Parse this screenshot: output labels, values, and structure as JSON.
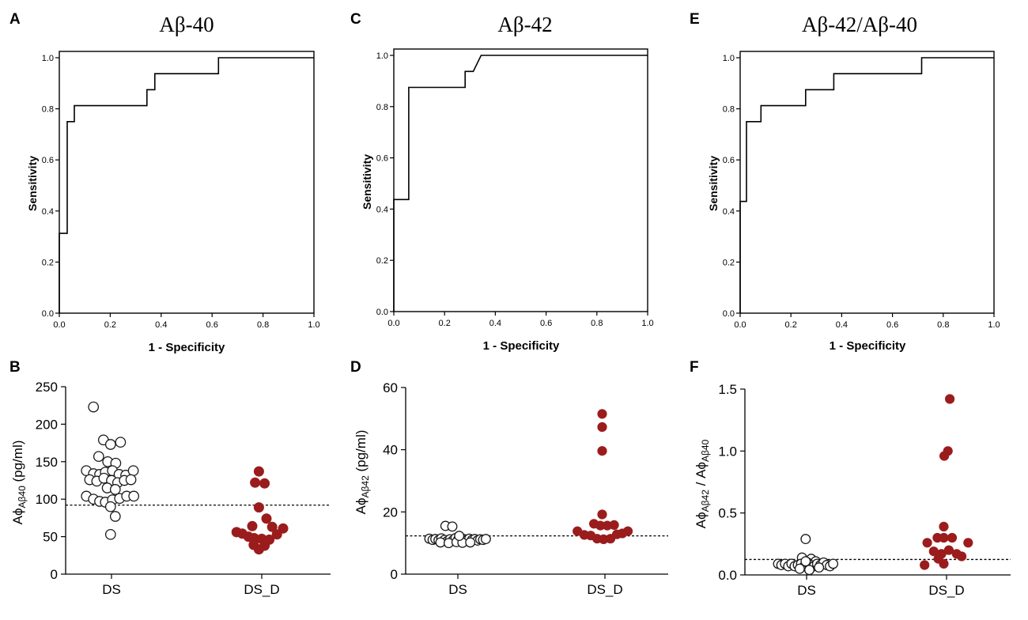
{
  "panel_labels": [
    "A",
    "B",
    "C",
    "D",
    "E",
    "F"
  ],
  "colors": {
    "axis": "#000000",
    "ds_fill": "#ffffff",
    "ds_stroke": "#1a1a1a",
    "dsd_fill": "#9b1c1c",
    "threshold": "#000000"
  },
  "chart_data": [
    {
      "panel": "A",
      "type": "line",
      "subtype": "roc-step",
      "title": "Aβ-40",
      "xlabel": "1 - Specificity",
      "ylabel": "Sensitivity",
      "xlim": [
        0,
        1
      ],
      "ylim": [
        0,
        1
      ],
      "xticks": [
        "0.0",
        "0.2",
        "0.4",
        "0.6",
        "0.8",
        "1.0"
      ],
      "yticks": [
        "0.0",
        "0.2",
        "0.4",
        "0.6",
        "0.8",
        "1.0"
      ],
      "points": [
        [
          0,
          0
        ],
        [
          0,
          0.3125
        ],
        [
          0.031,
          0.3125
        ],
        [
          0.031,
          0.75
        ],
        [
          0.059,
          0.75
        ],
        [
          0.059,
          0.8125
        ],
        [
          0.344,
          0.8125
        ],
        [
          0.344,
          0.875
        ],
        [
          0.375,
          0.875
        ],
        [
          0.375,
          0.9375
        ],
        [
          0.625,
          0.9375
        ],
        [
          0.625,
          1.0
        ],
        [
          1.0,
          1.0
        ]
      ]
    },
    {
      "panel": "C",
      "type": "line",
      "subtype": "roc-step",
      "title": "Aβ-42",
      "xlabel": "1 - Specificity",
      "ylabel": "Sensitivity",
      "xlim": [
        0,
        1
      ],
      "ylim": [
        0,
        1
      ],
      "xticks": [
        "0.0",
        "0.2",
        "0.4",
        "0.6",
        "0.8",
        "1.0"
      ],
      "yticks": [
        "0.0",
        "0.2",
        "0.4",
        "0.6",
        "0.8",
        "1.0"
      ],
      "points": [
        [
          0,
          0
        ],
        [
          0,
          0.4375
        ],
        [
          0.059,
          0.4375
        ],
        [
          0.059,
          0.875
        ],
        [
          0.281,
          0.875
        ],
        [
          0.281,
          0.9375
        ],
        [
          0.313,
          0.9375
        ],
        [
          0.344,
          1.0
        ],
        [
          1.0,
          1.0
        ]
      ]
    },
    {
      "panel": "E",
      "type": "line",
      "subtype": "roc-step",
      "title": "Aβ-42/Aβ-40",
      "xlabel": "1 - Specificity",
      "ylabel": "Sensitivity",
      "xlim": [
        0,
        1
      ],
      "ylim": [
        0,
        1
      ],
      "xticks": [
        "0.0",
        "0.2",
        "0.4",
        "0.6",
        "0.8",
        "1.0"
      ],
      "yticks": [
        "0.0",
        "0.2",
        "0.4",
        "0.6",
        "0.8",
        "1.0"
      ],
      "points": [
        [
          0,
          0
        ],
        [
          0,
          0.4375
        ],
        [
          0.025,
          0.4375
        ],
        [
          0.025,
          0.75
        ],
        [
          0.082,
          0.75
        ],
        [
          0.082,
          0.8125
        ],
        [
          0.258,
          0.8125
        ],
        [
          0.258,
          0.875
        ],
        [
          0.369,
          0.875
        ],
        [
          0.369,
          0.9375
        ],
        [
          0.715,
          0.9375
        ],
        [
          0.715,
          1.0
        ],
        [
          1.0,
          1.0
        ]
      ]
    },
    {
      "panel": "B",
      "type": "scatter",
      "subtype": "dot-plot",
      "ylabel_main": "Aϕ",
      "ylabel_sub": "Aβ40",
      "ylabel_unit": " (pg/ml)",
      "ylim": [
        0,
        250
      ],
      "yticks": [
        0,
        50,
        100,
        150,
        200,
        250
      ],
      "categories": [
        "DS",
        "DS_D"
      ],
      "threshold": 92,
      "series": [
        {
          "name": "DS",
          "style": "open",
          "points": [
            [
              -0.38,
              223
            ],
            [
              -0.17,
              179
            ],
            [
              -0.02,
              173
            ],
            [
              0.19,
              176
            ],
            [
              -0.27,
              157
            ],
            [
              -0.08,
              150
            ],
            [
              0.09,
              148
            ],
            [
              -0.53,
              138
            ],
            [
              -0.38,
              134
            ],
            [
              -0.25,
              133
            ],
            [
              -0.13,
              136
            ],
            [
              0.02,
              138
            ],
            [
              0.16,
              133
            ],
            [
              0.3,
              132
            ],
            [
              0.46,
              138
            ],
            [
              -0.46,
              126
            ],
            [
              -0.31,
              124
            ],
            [
              -0.16,
              128
            ],
            [
              0.0,
              125
            ],
            [
              0.13,
              122
            ],
            [
              0.27,
              125
            ],
            [
              0.41,
              126
            ],
            [
              -0.09,
              115
            ],
            [
              0.08,
              113
            ],
            [
              -0.53,
              104
            ],
            [
              -0.38,
              100
            ],
            [
              -0.25,
              97
            ],
            [
              -0.13,
              96
            ],
            [
              0.02,
              99
            ],
            [
              0.17,
              101
            ],
            [
              0.32,
              104
            ],
            [
              0.47,
              104
            ],
            [
              -0.02,
              90
            ],
            [
              0.08,
              77
            ],
            [
              -0.02,
              53
            ]
          ]
        },
        {
          "name": "DS_D",
          "style": "filled",
          "points": [
            [
              -0.06,
              137
            ],
            [
              -0.14,
              122
            ],
            [
              0.06,
              121
            ],
            [
              -0.06,
              89
            ],
            [
              0.1,
              74
            ],
            [
              -0.2,
              64
            ],
            [
              0.22,
              63
            ],
            [
              0.45,
              61
            ],
            [
              -0.53,
              56
            ],
            [
              -0.41,
              54
            ],
            [
              -0.28,
              50
            ],
            [
              -0.16,
              48
            ],
            [
              0.0,
              47
            ],
            [
              0.16,
              46
            ],
            [
              0.32,
              53
            ],
            [
              -0.17,
              39
            ],
            [
              0.06,
              38
            ],
            [
              -0.06,
              33
            ]
          ]
        }
      ]
    },
    {
      "panel": "D",
      "type": "scatter",
      "subtype": "dot-plot",
      "ylabel_main": "Aϕ",
      "ylabel_sub": "Aβ42",
      "ylabel_unit": " (pg/ml)",
      "ylim": [
        0,
        60
      ],
      "yticks": [
        0,
        20,
        40,
        60
      ],
      "categories": [
        "DS",
        "DS_D"
      ],
      "threshold": 12.3,
      "series": [
        {
          "name": "DS",
          "style": "open",
          "points": [
            [
              -0.27,
              15.5
            ],
            [
              -0.12,
              15.3
            ],
            [
              -0.62,
              11.4
            ],
            [
              -0.55,
              11.0
            ],
            [
              -0.49,
              11.3
            ],
            [
              -0.42,
              10.9
            ],
            [
              -0.36,
              11.5
            ],
            [
              -0.29,
              11.0
            ],
            [
              -0.23,
              10.6
            ],
            [
              -0.17,
              11.2
            ],
            [
              -0.11,
              10.8
            ],
            [
              -0.05,
              11.6
            ],
            [
              0.01,
              11.2
            ],
            [
              0.07,
              10.7
            ],
            [
              0.13,
              11.3
            ],
            [
              0.19,
              10.9
            ],
            [
              0.25,
              11.4
            ],
            [
              0.31,
              11.0
            ],
            [
              0.37,
              11.3
            ],
            [
              0.43,
              10.8
            ],
            [
              0.49,
              11.2
            ],
            [
              0.55,
              11.0
            ],
            [
              0.61,
              11.3
            ],
            [
              -0.38,
              10.2
            ],
            [
              -0.2,
              10.0
            ],
            [
              -0.03,
              10.3
            ],
            [
              0.1,
              10.1
            ],
            [
              0.27,
              10.2
            ],
            [
              0.03,
              12.3
            ]
          ]
        },
        {
          "name": "DS_D",
          "style": "filled",
          "points": [
            [
              -0.06,
              51.5
            ],
            [
              -0.06,
              47.3
            ],
            [
              -0.06,
              39.6
            ],
            [
              -0.06,
              19.2
            ],
            [
              -0.24,
              16.2
            ],
            [
              -0.1,
              15.6
            ],
            [
              0.05,
              15.6
            ],
            [
              0.2,
              15.8
            ],
            [
              -0.6,
              13.8
            ],
            [
              0.5,
              13.8
            ],
            [
              -0.45,
              12.6
            ],
            [
              -0.31,
              12.4
            ],
            [
              -0.17,
              11.4
            ],
            [
              -0.03,
              11.2
            ],
            [
              0.12,
              11.4
            ],
            [
              0.26,
              12.8
            ],
            [
              0.38,
              13.1
            ]
          ]
        }
      ]
    },
    {
      "panel": "F",
      "type": "scatter",
      "subtype": "dot-plot",
      "ylabel_main": "Aϕ",
      "ylabel_sub": "Aβ42",
      "ylabel_sep": " / ",
      "ylabel_main2": "Aϕ",
      "ylabel_sub2": "Aβ40",
      "ylim": [
        0,
        1.5
      ],
      "yticks": [
        "0.0",
        "0.5",
        "1.0",
        "1.5"
      ],
      "categories": [
        "DS",
        "DS_D"
      ],
      "threshold": 0.125,
      "series": [
        {
          "name": "DS",
          "style": "open",
          "points": [
            [
              -0.02,
              0.29
            ],
            [
              -0.1,
              0.14
            ],
            [
              0.1,
              0.13
            ],
            [
              0.2,
              0.11
            ],
            [
              -0.62,
              0.09
            ],
            [
              -0.55,
              0.08
            ],
            [
              -0.47,
              0.09
            ],
            [
              -0.4,
              0.07
            ],
            [
              -0.33,
              0.09
            ],
            [
              -0.26,
              0.07
            ],
            [
              -0.19,
              0.08
            ],
            [
              -0.12,
              0.09
            ],
            [
              -0.05,
              0.07
            ],
            [
              0.02,
              0.1
            ],
            [
              0.09,
              0.08
            ],
            [
              0.16,
              0.07
            ],
            [
              0.23,
              0.09
            ],
            [
              0.3,
              0.08
            ],
            [
              0.37,
              0.1
            ],
            [
              0.44,
              0.08
            ],
            [
              0.51,
              0.07
            ],
            [
              0.58,
              0.09
            ],
            [
              -0.15,
              0.05
            ],
            [
              0.06,
              0.04
            ],
            [
              0.27,
              0.06
            ],
            [
              -0.02,
              0.11
            ]
          ]
        },
        {
          "name": "DS_D",
          "style": "filled",
          "points": [
            [
              0.07,
              1.42
            ],
            [
              0.03,
              1.0
            ],
            [
              -0.05,
              0.96
            ],
            [
              -0.06,
              0.39
            ],
            [
              -0.2,
              0.3
            ],
            [
              -0.06,
              0.3
            ],
            [
              0.12,
              0.3
            ],
            [
              -0.42,
              0.26
            ],
            [
              0.47,
              0.26
            ],
            [
              -0.28,
              0.19
            ],
            [
              -0.11,
              0.17
            ],
            [
              0.05,
              0.2
            ],
            [
              0.22,
              0.17
            ],
            [
              0.33,
              0.15
            ],
            [
              -0.48,
              0.08
            ],
            [
              -0.06,
              0.09
            ],
            [
              -0.18,
              0.13
            ]
          ]
        }
      ]
    }
  ]
}
